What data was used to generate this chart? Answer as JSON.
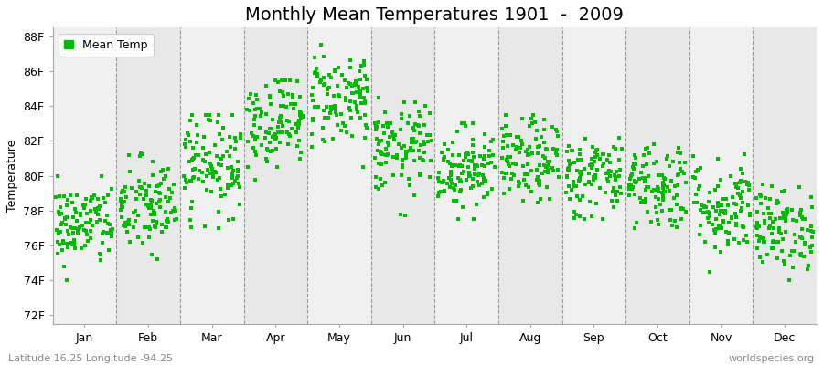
{
  "title": "Monthly Mean Temperatures 1901  -  2009",
  "ylabel": "Temperature",
  "bg_color": "#ffffff",
  "plot_bg_color": "#ffffff",
  "strip_color_odd": "#f0f0f0",
  "strip_color_even": "#e8e8e8",
  "marker_color": "#00bb00",
  "marker_size": 6,
  "yticks": [
    72,
    74,
    76,
    78,
    80,
    82,
    84,
    86,
    88
  ],
  "ylabels": [
    "72F",
    "74F",
    "76F",
    "78F",
    "80F",
    "82F",
    "84F",
    "86F",
    "88F"
  ],
  "ylim": [
    71.5,
    88.5
  ],
  "months": [
    "Jan",
    "Feb",
    "Mar",
    "Apr",
    "May",
    "Jun",
    "Jul",
    "Aug",
    "Sep",
    "Oct",
    "Nov",
    "Dec"
  ],
  "month_means": [
    77.2,
    78.2,
    80.8,
    83.2,
    84.5,
    81.5,
    80.5,
    80.8,
    80.0,
    79.5,
    78.2,
    77.0
  ],
  "month_stds": [
    1.2,
    1.4,
    1.5,
    1.3,
    1.4,
    1.3,
    1.2,
    1.2,
    1.2,
    1.3,
    1.4,
    1.2
  ],
  "month_mins": [
    73.0,
    74.0,
    77.0,
    79.5,
    80.5,
    77.5,
    77.5,
    77.5,
    77.5,
    77.0,
    74.5,
    74.0
  ],
  "month_maxs": [
    80.0,
    82.0,
    83.5,
    85.5,
    87.5,
    84.5,
    83.0,
    83.5,
    82.5,
    82.5,
    82.0,
    79.5
  ],
  "n_years": 109,
  "seed": 42,
  "subtitle_left": "Latitude 16.25 Longitude -94.25",
  "subtitle_right": "worldspecies.org",
  "legend_label": "Mean Temp",
  "title_fontsize": 14,
  "axis_label_fontsize": 9,
  "tick_fontsize": 9,
  "subtitle_fontsize": 8
}
